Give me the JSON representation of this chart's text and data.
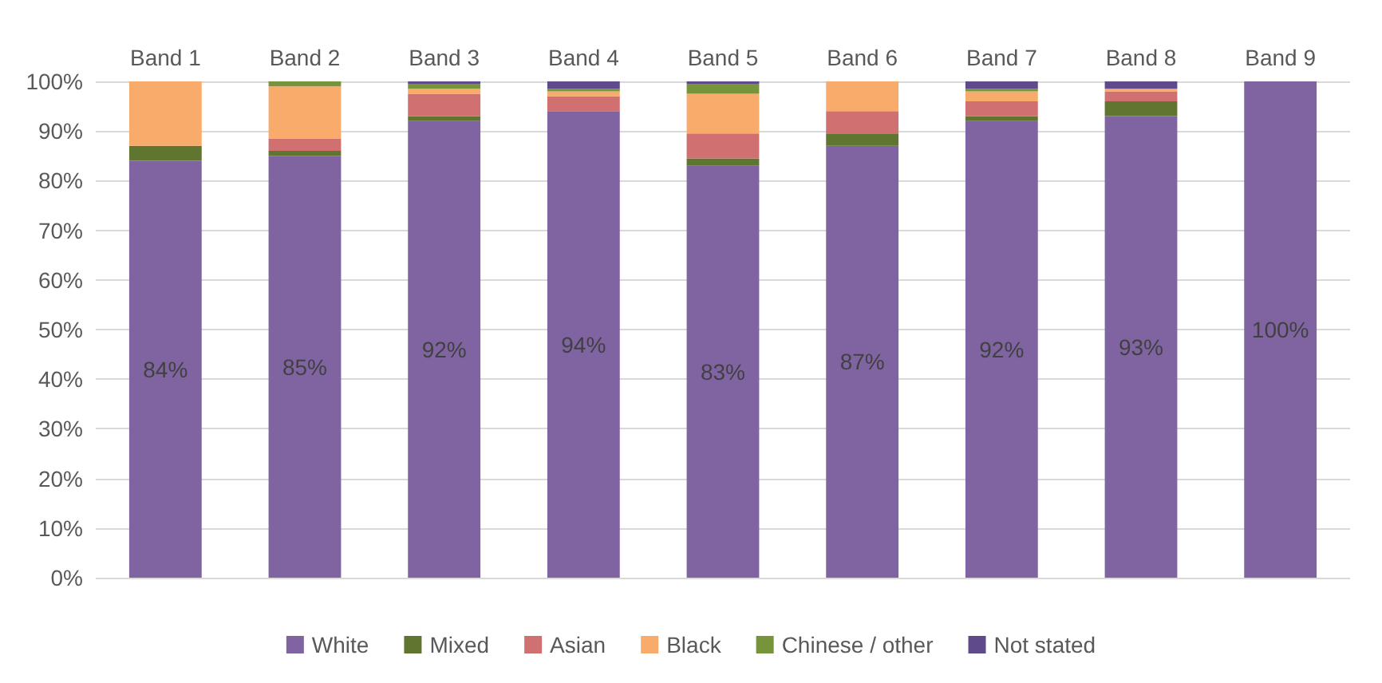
{
  "chart_data": {
    "type": "bar",
    "stacked": true,
    "categories": [
      "Band 1",
      "Band 2",
      "Band 3",
      "Band 4",
      "Band 5",
      "Band 6",
      "Band 7",
      "Band 8",
      "Band 9"
    ],
    "series": [
      {
        "name": "White",
        "color": "#8064a2",
        "values": [
          84,
          85,
          92,
          94,
          83,
          87,
          92,
          93,
          100
        ],
        "value_labels": [
          "84%",
          "85%",
          "92%",
          "94%",
          "83%",
          "87%",
          "92%",
          "93%",
          "100%"
        ]
      },
      {
        "name": "Mixed",
        "color": "#5f7530",
        "values": [
          3,
          1,
          1,
          0,
          1.5,
          2.5,
          1,
          3,
          0
        ]
      },
      {
        "name": "Asian",
        "color": "#d07070",
        "values": [
          0,
          2.5,
          4.5,
          3,
          5,
          4.5,
          3,
          2,
          0
        ]
      },
      {
        "name": "Black",
        "color": "#f9ab6b",
        "values": [
          13,
          10.5,
          1,
          1,
          8,
          6,
          2,
          0.5,
          0
        ]
      },
      {
        "name": "Chinese / other",
        "color": "#77933c",
        "values": [
          0,
          1,
          1,
          0.5,
          2,
          0,
          0.5,
          0,
          0
        ]
      },
      {
        "name": "Not stated",
        "color": "#5f4b8b",
        "values": [
          0,
          0,
          0.5,
          1.5,
          0.5,
          0,
          1.5,
          1.5,
          0
        ]
      }
    ],
    "ylim": [
      0,
      100
    ],
    "yticks": [
      {
        "value": 0,
        "label": "0%"
      },
      {
        "value": 10,
        "label": "10%"
      },
      {
        "value": 20,
        "label": "20%"
      },
      {
        "value": 30,
        "label": "30%"
      },
      {
        "value": 40,
        "label": "40%"
      },
      {
        "value": 50,
        "label": "50%"
      },
      {
        "value": 60,
        "label": "60%"
      },
      {
        "value": 70,
        "label": "70%"
      },
      {
        "value": 80,
        "label": "80%"
      },
      {
        "value": 90,
        "label": "90%"
      },
      {
        "value": 100,
        "label": "100%"
      }
    ],
    "grid": "y",
    "legend": "bottom"
  }
}
